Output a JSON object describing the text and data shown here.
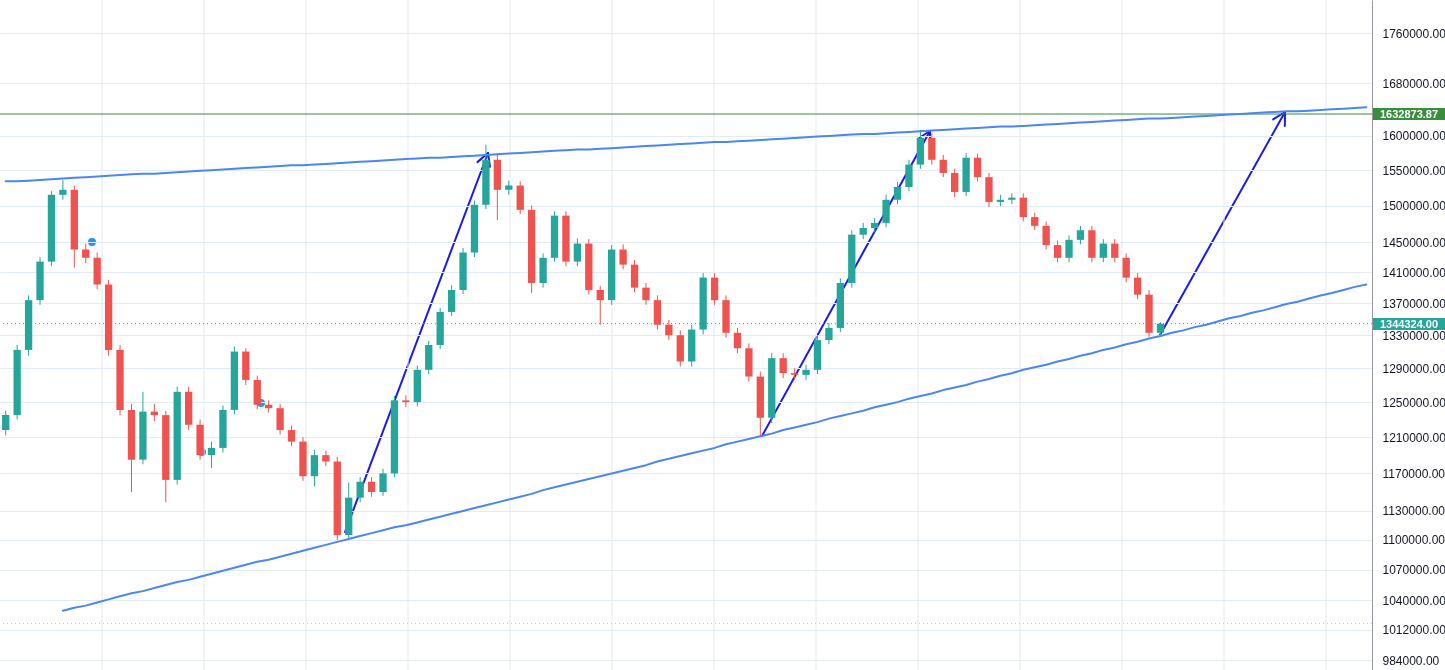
{
  "chart_data": {
    "type": "candlestick",
    "categories": [
      null,
      null,
      null,
      null,
      null,
      null,
      null,
      null,
      null,
      null,
      null,
      null,
      null,
      null,
      null,
      null,
      null,
      null,
      null,
      null,
      null,
      null,
      null,
      null,
      null,
      null,
      null,
      null,
      null,
      null,
      null,
      null,
      null,
      null,
      null,
      null,
      null,
      null,
      null,
      null,
      null,
      null,
      null,
      null,
      null,
      null,
      null,
      null,
      null,
      null,
      null,
      null,
      null,
      null,
      null,
      null,
      null,
      null,
      null,
      null,
      null,
      null,
      null,
      null,
      null,
      null,
      null,
      null,
      null,
      null,
      null,
      null,
      null,
      null,
      null,
      null,
      null,
      null,
      null,
      null,
      null,
      null,
      null,
      null,
      null,
      null,
      null,
      null,
      null,
      null,
      null,
      null,
      null,
      null,
      null,
      null,
      null,
      null,
      null,
      null,
      null,
      null,
      null,
      null,
      null,
      null,
      null,
      null,
      null,
      null,
      null,
      null,
      null,
      null,
      null,
      null,
      null,
      null,
      null,
      null
    ],
    "ohlc": [
      [
        1218000,
        1240000,
        1212000,
        1235000
      ],
      [
        1235000,
        1318000,
        1230000,
        1312000
      ],
      [
        1312000,
        1380000,
        1305000,
        1374000
      ],
      [
        1374000,
        1430000,
        1368000,
        1424000
      ],
      [
        1424000,
        1520000,
        1418000,
        1515000
      ],
      [
        1515000,
        1536000,
        1508000,
        1522000
      ],
      [
        1522000,
        1528000,
        1416000,
        1440000
      ],
      [
        1440000,
        1448000,
        1422000,
        1429000
      ],
      [
        1429000,
        1436000,
        1388000,
        1394000
      ],
      [
        1394000,
        1400000,
        1305000,
        1312000
      ],
      [
        1312000,
        1318000,
        1235000,
        1241000
      ],
      [
        1241000,
        1248000,
        1150000,
        1185000
      ],
      [
        1185000,
        1262000,
        1180000,
        1239000
      ],
      [
        1239000,
        1248000,
        1228000,
        1235000
      ],
      [
        1235000,
        1240000,
        1139000,
        1163000
      ],
      [
        1163000,
        1268000,
        1158000,
        1262000
      ],
      [
        1262000,
        1268000,
        1218000,
        1224000
      ],
      [
        1224000,
        1230000,
        1185000,
        1190000
      ],
      [
        1190000,
        1205000,
        1176000,
        1198000
      ],
      [
        1198000,
        1246000,
        1193000,
        1241000
      ],
      [
        1241000,
        1316000,
        1236000,
        1310000
      ],
      [
        1310000,
        1314000,
        1270000,
        1276000
      ],
      [
        1276000,
        1281000,
        1242000,
        1247000
      ],
      [
        1247000,
        1252000,
        1238000,
        1243000
      ],
      [
        1243000,
        1248000,
        1213000,
        1218000
      ],
      [
        1218000,
        1223000,
        1200000,
        1205000
      ],
      [
        1205000,
        1210000,
        1162000,
        1167000
      ],
      [
        1167000,
        1196000,
        1156000,
        1190000
      ],
      [
        1190000,
        1195000,
        1178000,
        1183000
      ],
      [
        1183000,
        1188000,
        1100000,
        1105000
      ],
      [
        1105000,
        1160000,
        1102000,
        1144000
      ],
      [
        1144000,
        1166000,
        1139000,
        1161000
      ],
      [
        1161000,
        1166000,
        1145000,
        1150000
      ],
      [
        1150000,
        1175000,
        1146000,
        1170000
      ],
      [
        1170000,
        1257000,
        1166000,
        1252000
      ],
      [
        1252000,
        1258000,
        1244000,
        1250000
      ],
      [
        1250000,
        1293000,
        1245000,
        1288000
      ],
      [
        1288000,
        1323000,
        1283000,
        1318000
      ],
      [
        1318000,
        1364000,
        1313000,
        1359000
      ],
      [
        1359000,
        1393000,
        1354000,
        1387000
      ],
      [
        1387000,
        1442000,
        1382000,
        1436000
      ],
      [
        1436000,
        1507000,
        1430000,
        1501000
      ],
      [
        1501000,
        1587000,
        1495000,
        1565000
      ],
      [
        1565000,
        1575000,
        1480000,
        1522000
      ],
      [
        1522000,
        1535000,
        1515000,
        1528000
      ],
      [
        1528000,
        1534000,
        1488000,
        1494000
      ],
      [
        1494000,
        1500000,
        1383000,
        1396000
      ],
      [
        1396000,
        1435000,
        1390000,
        1429000
      ],
      [
        1429000,
        1492000,
        1424000,
        1486000
      ],
      [
        1486000,
        1492000,
        1418000,
        1424000
      ],
      [
        1424000,
        1455000,
        1418000,
        1448000
      ],
      [
        1448000,
        1454000,
        1381000,
        1387000
      ],
      [
        1387000,
        1392000,
        1343000,
        1374000
      ],
      [
        1374000,
        1446000,
        1368000,
        1440000
      ],
      [
        1440000,
        1447000,
        1414000,
        1420000
      ],
      [
        1420000,
        1426000,
        1384000,
        1390000
      ],
      [
        1390000,
        1396000,
        1368000,
        1374000
      ],
      [
        1374000,
        1380000,
        1337000,
        1343000
      ],
      [
        1343000,
        1349000,
        1324000,
        1330000
      ],
      [
        1330000,
        1336000,
        1292000,
        1298000
      ],
      [
        1298000,
        1343000,
        1292000,
        1337000
      ],
      [
        1337000,
        1409000,
        1331000,
        1403000
      ],
      [
        1403000,
        1409000,
        1368000,
        1374000
      ],
      [
        1374000,
        1380000,
        1327000,
        1333000
      ],
      [
        1333000,
        1339000,
        1308000,
        1314000
      ],
      [
        1314000,
        1320000,
        1274000,
        1280000
      ],
      [
        1280000,
        1286000,
        1211000,
        1232000
      ],
      [
        1232000,
        1308000,
        1226000,
        1302000
      ],
      [
        1302000,
        1308000,
        1278000,
        1284000
      ],
      [
        1284000,
        1290000,
        1276000,
        1282000
      ],
      [
        1282000,
        1294000,
        1276000,
        1288000
      ],
      [
        1288000,
        1330000,
        1283000,
        1324000
      ],
      [
        1324000,
        1345000,
        1319000,
        1339000
      ],
      [
        1339000,
        1402000,
        1334000,
        1396000
      ],
      [
        1396000,
        1466000,
        1390000,
        1460000
      ],
      [
        1460000,
        1476000,
        1454000,
        1469000
      ],
      [
        1469000,
        1483000,
        1463000,
        1476000
      ],
      [
        1476000,
        1515000,
        1470000,
        1508000
      ],
      [
        1508000,
        1533000,
        1502000,
        1526000
      ],
      [
        1526000,
        1565000,
        1520000,
        1558000
      ],
      [
        1558000,
        1609000,
        1552000,
        1597000
      ],
      [
        1597000,
        1604000,
        1558000,
        1565000
      ],
      [
        1565000,
        1572000,
        1540000,
        1546000
      ],
      [
        1546000,
        1552000,
        1512000,
        1519000
      ],
      [
        1519000,
        1575000,
        1513000,
        1568000
      ],
      [
        1568000,
        1574000,
        1534000,
        1540000
      ],
      [
        1540000,
        1546000,
        1498000,
        1505000
      ],
      [
        1505000,
        1515000,
        1499000,
        1508000
      ],
      [
        1508000,
        1517000,
        1502000,
        1511000
      ],
      [
        1511000,
        1517000,
        1478000,
        1484000
      ],
      [
        1484000,
        1490000,
        1466000,
        1472000
      ],
      [
        1472000,
        1478000,
        1440000,
        1446000
      ],
      [
        1446000,
        1452000,
        1423000,
        1429000
      ],
      [
        1429000,
        1459000,
        1423000,
        1453000
      ],
      [
        1453000,
        1472000,
        1447000,
        1466000
      ],
      [
        1466000,
        1472000,
        1423000,
        1429000
      ],
      [
        1429000,
        1454000,
        1423000,
        1448000
      ],
      [
        1448000,
        1454000,
        1423000,
        1429000
      ],
      [
        1429000,
        1435000,
        1397000,
        1403000
      ],
      [
        1403000,
        1409000,
        1375000,
        1381000
      ],
      [
        1381000,
        1387000,
        1328000,
        1333000
      ],
      [
        1333000,
        1346000,
        1330000,
        1344324
      ],
      null,
      null,
      null,
      null,
      null,
      null,
      null,
      null,
      null,
      null,
      null,
      null,
      null,
      null,
      null,
      null,
      null,
      null
    ],
    "colors": [
      "#26a69a",
      "#26a69a",
      "#26a69a",
      "#26a69a",
      "#26a69a",
      "#26a69a",
      "#ef5350",
      "#ef5350",
      "#ef5350",
      "#ef5350",
      "#ef5350",
      "#ef5350",
      "#26a69a",
      "#ef5350",
      "#ef5350",
      "#26a69a",
      "#ef5350",
      "#ef5350",
      "#26a69a",
      "#26a69a",
      "#26a69a",
      "#ef5350",
      "#ef5350",
      "#ef5350",
      "#ef5350",
      "#ef5350",
      "#ef5350",
      "#26a69a",
      "#ef5350",
      "#ef5350",
      "#26a69a",
      "#26a69a",
      "#ef5350",
      "#26a69a",
      "#26a69a",
      "#ef5350",
      "#26a69a",
      "#26a69a",
      "#26a69a",
      "#26a69a",
      "#26a69a",
      "#26a69a",
      "#26a69a",
      "#ef5350",
      "#26a69a",
      "#ef5350",
      "#ef5350",
      "#26a69a",
      "#26a69a",
      "#ef5350",
      "#26a69a",
      "#ef5350",
      "#ef5350",
      "#26a69a",
      "#ef5350",
      "#ef5350",
      "#ef5350",
      "#ef5350",
      "#ef5350",
      "#ef5350",
      "#26a69a",
      "#26a69a",
      "#ef5350",
      "#ef5350",
      "#ef5350",
      "#ef5350",
      "#ef5350",
      "#26a69a",
      "#ef5350",
      "#ef5350",
      "#26a69a",
      "#26a69a",
      "#26a69a",
      "#26a69a",
      "#26a69a",
      "#26a69a",
      "#26a69a",
      "#26a69a",
      "#26a69a",
      "#26a69a",
      "#26a69a",
      "#ef5350",
      "#ef5350",
      "#ef5350",
      "#26a69a",
      "#ef5350",
      "#ef5350",
      "#26a69a",
      "#26a69a",
      "#ef5350",
      "#ef5350",
      "#ef5350",
      "#ef5350",
      "#26a69a",
      "#26a69a",
      "#ef5350",
      "#26a69a",
      "#ef5350",
      "#ef5350",
      "#ef5350",
      "#ef5350",
      "#26a69a",
      null,
      null,
      null,
      null,
      null,
      null,
      null,
      null,
      null,
      null,
      null,
      null,
      null,
      null,
      null,
      null,
      null,
      null
    ],
    "series": [
      {
        "type": "line",
        "color": "#4a86f5",
        "values": [
          1534000,
          1534000,
          1535000,
          1536000,
          1537000,
          1538000,
          1539000,
          1540000,
          1541000,
          1542000,
          1543000,
          1544000,
          1545000,
          1545000,
          1546000,
          1547000,
          1548000,
          1549000,
          1550000,
          1551000,
          1552000,
          1553000,
          1554000,
          1555000,
          1556000,
          1557000,
          1557000,
          1558000,
          1559000,
          1560000,
          1561000,
          1562000,
          1563000,
          1564000,
          1565000,
          1566000,
          1567000,
          1568000,
          1568000,
          1569000,
          1570000,
          1571000,
          1572000,
          1573000,
          1574000,
          1575000,
          1576000,
          1577000,
          1578000,
          1579000,
          1580000,
          1580000,
          1581000,
          1582000,
          1583000,
          1584000,
          1585000,
          1586000,
          1587000,
          1588000,
          1589000,
          1590000,
          1591000,
          1591000,
          1592000,
          1593000,
          1594000,
          1595000,
          1596000,
          1597000,
          1598000,
          1599000,
          1600000,
          1601000,
          1602000,
          1603000,
          1603000,
          1604000,
          1605000,
          1606000,
          1607000,
          1608000,
          1609000,
          1610000,
          1611000,
          1612000,
          1613000,
          1614000,
          1614000,
          1615000,
          1616000,
          1617000,
          1618000,
          1619000,
          1620000,
          1621000,
          1622000,
          1623000,
          1624000,
          1625000,
          1626000,
          1626000,
          1627000,
          1628000,
          1629000,
          1630000,
          1631000,
          1632000,
          1633000,
          1634000,
          1635000,
          1636000,
          1637000,
          1637000,
          1638000,
          1639000,
          1640000,
          1641000,
          1642000,
          1643000
        ]
      },
      {
        "type": "line",
        "color": "#4a86f5",
        "values": [
          null,
          null,
          null,
          null,
          null,
          1030000,
          1033000,
          1035000,
          1038000,
          1041000,
          1044000,
          1047000,
          1049000,
          1052000,
          1055000,
          1058000,
          1060000,
          1063000,
          1066000,
          1069000,
          1072000,
          1075000,
          1078000,
          1080000,
          1083000,
          1086000,
          1089000,
          1092000,
          1095000,
          1098000,
          1101000,
          1104000,
          1107000,
          1110000,
          1113000,
          1115000,
          1118000,
          1121000,
          1124000,
          1127000,
          1130000,
          1133000,
          1136000,
          1139000,
          1142000,
          1145000,
          1148000,
          1152000,
          1155000,
          1158000,
          1161000,
          1164000,
          1167000,
          1170000,
          1173000,
          1176000,
          1179000,
          1183000,
          1186000,
          1189000,
          1192000,
          1195000,
          1198000,
          1202000,
          1205000,
          1208000,
          1211000,
          1214000,
          1218000,
          1221000,
          1224000,
          1227000,
          1231000,
          1234000,
          1237000,
          1240000,
          1244000,
          1247000,
          1250000,
          1254000,
          1257000,
          1260000,
          1264000,
          1267000,
          1270000,
          1274000,
          1277000,
          1281000,
          1284000,
          1288000,
          1291000,
          1294000,
          1298000,
          1301000,
          1305000,
          1308000,
          1312000,
          1315000,
          1319000,
          1322000,
          1326000,
          1329000,
          1333000,
          1336000,
          1340000,
          1343000,
          1347000,
          1351000,
          1354000,
          1358000,
          1361000,
          1365000,
          1369000,
          1372000,
          1376000,
          1380000,
          1383000,
          1387000,
          1391000,
          1394000
        ]
      }
    ],
    "ylim": [
      975000,
      1815000
    ],
    "yticks": [
      {
        "value": 984000,
        "label": "984000.00"
      },
      {
        "value": 1012000,
        "label": "1012000.00"
      },
      {
        "value": 1040000,
        "label": "1040000.00"
      },
      {
        "value": 1070000,
        "label": "1070000.00"
      },
      {
        "value": 1100000,
        "label": "1100000.00"
      },
      {
        "value": 1130000,
        "label": "1130000.00"
      },
      {
        "value": 1170000,
        "label": "1170000.00"
      },
      {
        "value": 1210000,
        "label": "1210000.00"
      },
      {
        "value": 1250000,
        "label": "1250000.00"
      },
      {
        "value": 1290000,
        "label": "1290000.00"
      },
      {
        "value": 1330000,
        "label": "1330000.00"
      },
      {
        "value": 1370000,
        "label": "1370000.00"
      },
      {
        "value": 1410000,
        "label": "1410000.00"
      },
      {
        "value": 1450000,
        "label": "1450000.00"
      },
      {
        "value": 1500000,
        "label": "1500000.00"
      },
      {
        "value": 1550000,
        "label": "1550000.00"
      },
      {
        "value": 1600000,
        "label": "1600000.00"
      },
      {
        "value": 1680000,
        "label": "1680000.00"
      },
      {
        "value": 1760000,
        "label": "1760000.00"
      }
    ],
    "log": true,
    "grid": true,
    "tick_labels": "y",
    "ref_lines": [
      {
        "axis": "y",
        "value": 1344324,
        "label": "1344324.00",
        "color": "#26a69a",
        "line_style": "dotted"
      },
      {
        "axis": "y",
        "value": 1632873.87,
        "label": "1632873.87",
        "color": "#388e3c",
        "line_style": "solid"
      },
      {
        "axis": "y",
        "value": 1018000,
        "color": "#c8c8c8",
        "line_style": "dotted"
      }
    ]
  }
}
